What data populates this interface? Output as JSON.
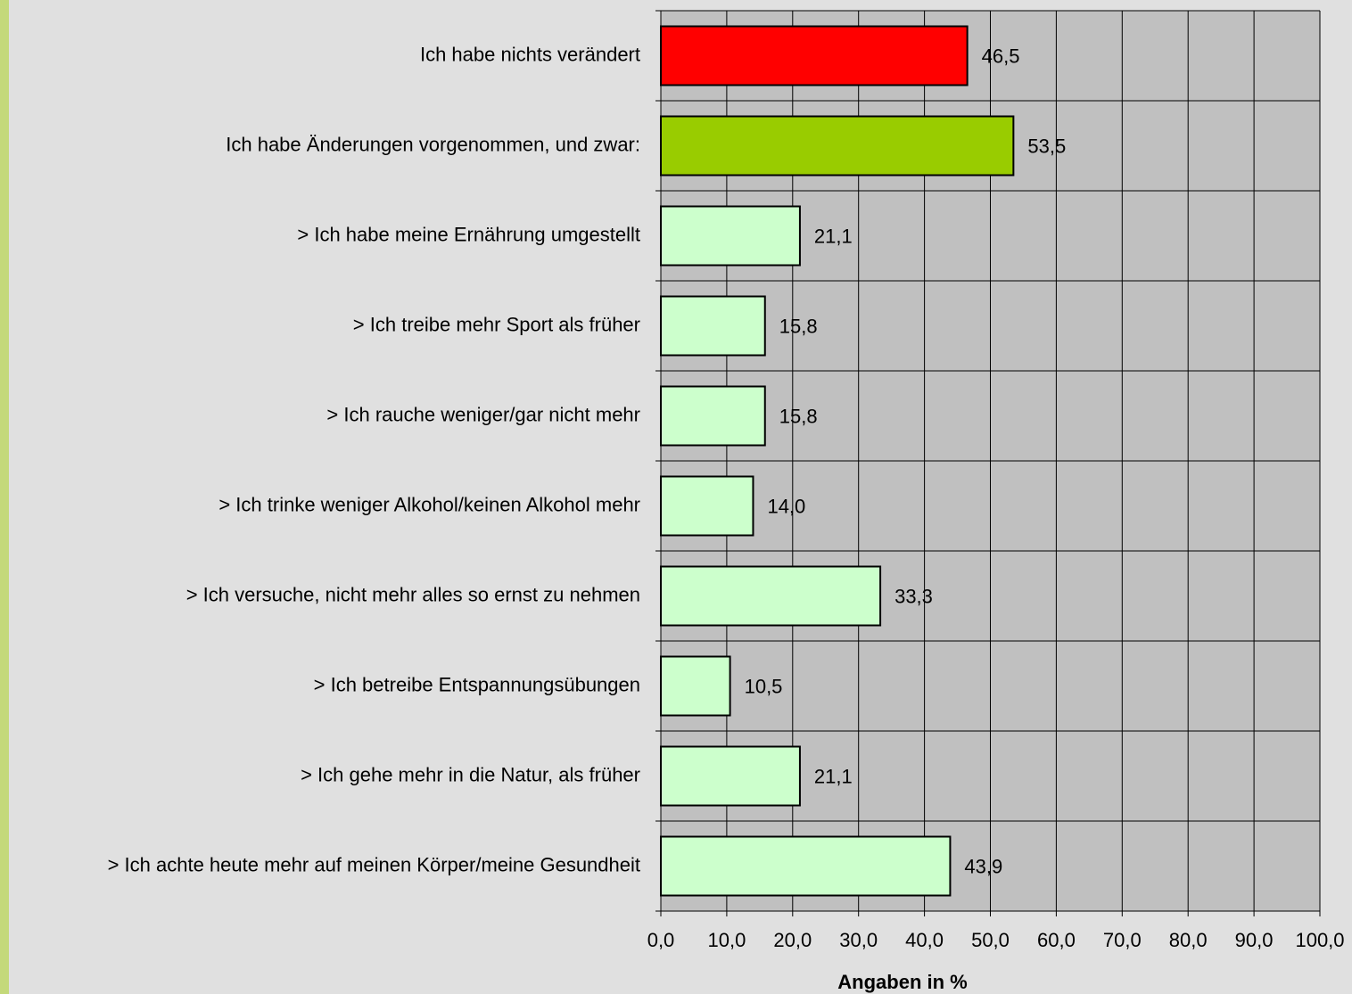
{
  "chart_data": {
    "type": "hbar",
    "categories": [
      "Ich habe nichts verändert",
      "Ich habe Änderungen vorgenommen, und zwar:",
      "> Ich habe meine Ernährung umgestellt",
      "> Ich treibe mehr Sport als früher",
      "> Ich rauche weniger/gar nicht mehr",
      "> Ich trinke weniger Alkohol/keinen Alkohol mehr",
      "> Ich versuche, nicht mehr alles so ernst zu nehmen",
      "> Ich betreibe Entspannungsübungen",
      "> Ich gehe mehr in die Natur, als früher",
      "> Ich achte heute mehr auf meinen Körper/meine Gesundheit"
    ],
    "values": [
      46.5,
      53.5,
      21.1,
      15.8,
      15.8,
      14.0,
      33.3,
      10.5,
      21.1,
      43.9
    ],
    "value_labels": [
      "46,5",
      "53,5",
      "21,1",
      "15,8",
      "15,8",
      "14,0",
      "33,3",
      "10,5",
      "21,1",
      "43,9"
    ],
    "colors": [
      "#ff0000",
      "#99cc00",
      "#ccffcc",
      "#ccffcc",
      "#ccffcc",
      "#ccffcc",
      "#ccffcc",
      "#ccffcc",
      "#ccffcc",
      "#ccffcc"
    ],
    "xlabel": "Angaben in %",
    "xlim": [
      0,
      100
    ],
    "xticks": [
      {
        "value": 0,
        "label": "0,0"
      },
      {
        "value": 10,
        "label": "10,0"
      },
      {
        "value": 20,
        "label": "20,0"
      },
      {
        "value": 30,
        "label": "30,0"
      },
      {
        "value": 40,
        "label": "40,0"
      },
      {
        "value": 50,
        "label": "50,0"
      },
      {
        "value": 60,
        "label": "60,0"
      },
      {
        "value": 70,
        "label": "70,0"
      },
      {
        "value": 80,
        "label": "80,0"
      },
      {
        "value": 90,
        "label": "90,0"
      },
      {
        "value": 100,
        "label": "100,0"
      }
    ],
    "grid": true
  }
}
